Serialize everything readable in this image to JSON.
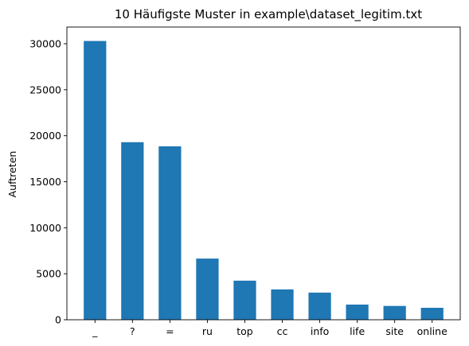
{
  "chart_data": {
    "type": "bar",
    "title": "10 Häufigste Muster in example\\dataset_legitim.txt",
    "xlabel": "",
    "ylabel": "Auftreten",
    "categories": [
      "_",
      "?",
      "=",
      "ru",
      "top",
      "cc",
      "info",
      "life",
      "site",
      "online"
    ],
    "values": [
      30300,
      19300,
      18850,
      6650,
      4250,
      3300,
      2950,
      1650,
      1500,
      1300
    ],
    "ylim": [
      0,
      31815
    ],
    "yticks": [
      0,
      5000,
      10000,
      15000,
      20000,
      25000,
      30000
    ],
    "ytick_labels": [
      "0",
      "5000",
      "10000",
      "15000",
      "20000",
      "25000",
      "30000"
    ],
    "bar_color": "#1f77b4",
    "grid": false
  }
}
